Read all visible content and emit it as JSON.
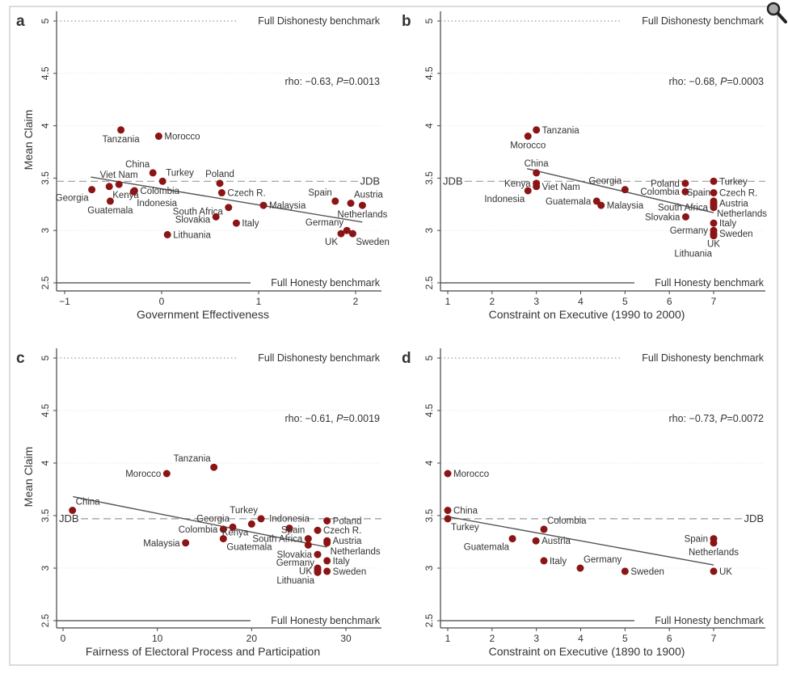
{
  "chart_data": [
    {
      "type": "scatter",
      "panel_letter": "a",
      "xlabel": "Government Effectiveness",
      "ylabel": "Mean Claim",
      "xlim": [
        -1.1,
        2.3
      ],
      "ylim": [
        2.45,
        5.05
      ],
      "xticks": [
        -1,
        0,
        1,
        2
      ],
      "xtick_labels": [
        "−1",
        "0",
        "1",
        "2"
      ],
      "yticks": [
        2.5,
        3,
        3.5,
        4,
        4.5,
        5
      ],
      "ytick_labels": [
        "2.5",
        "3",
        "3.5",
        "4",
        "4.5",
        "5"
      ],
      "annotation": "rho: −0.63, ",
      "p_label": "P",
      "p_value": "=0.0013",
      "jdb_label": "JDB",
      "jdb_side": "right",
      "jdb_value": 3.47,
      "dishonesty_label": "Full Dishonesty benchmark",
      "dishonesty_value": 5,
      "honesty_label": "Full Honesty benchmark",
      "honesty_value": 2.5,
      "trend": [
        [
          -0.73,
          3.51
        ],
        [
          2.07,
          3.08
        ]
      ],
      "points": [
        {
          "label": "Tanzania",
          "x": -0.42,
          "y": 3.96,
          "pos": "b"
        },
        {
          "label": "Morocco",
          "x": -0.03,
          "y": 3.9,
          "pos": "r"
        },
        {
          "label": "China",
          "x": -0.09,
          "y": 3.55,
          "pos": "tl"
        },
        {
          "label": "Turkey",
          "x": 0.01,
          "y": 3.47,
          "pos": "tr"
        },
        {
          "label": "Viet Nam",
          "x": -0.44,
          "y": 3.44,
          "pos": "t"
        },
        {
          "label": "Kenya",
          "x": -0.54,
          "y": 3.42,
          "pos": "br"
        },
        {
          "label": "Georgia",
          "x": -0.72,
          "y": 3.39,
          "pos": "bl"
        },
        {
          "label": "Colombia",
          "x": -0.28,
          "y": 3.38,
          "pos": "r"
        },
        {
          "label": "Indonesia",
          "x": -0.29,
          "y": 3.37,
          "pos": "br"
        },
        {
          "label": "Guatemala",
          "x": -0.53,
          "y": 3.28,
          "pos": "b"
        },
        {
          "label": "Poland",
          "x": 0.6,
          "y": 3.45,
          "pos": "t"
        },
        {
          "label": "Czech R.",
          "x": 0.62,
          "y": 3.36,
          "pos": "r"
        },
        {
          "label": "South Africa",
          "x": 0.69,
          "y": 3.22,
          "pos": "l"
        },
        {
          "label": "Slovakia",
          "x": 0.56,
          "y": 3.13,
          "pos": "l"
        },
        {
          "label": "Italy",
          "x": 0.77,
          "y": 3.07,
          "pos": "r"
        },
        {
          "label": "Lithuania",
          "x": 0.06,
          "y": 2.96,
          "pos": "r"
        },
        {
          "label": "Malaysia",
          "x": 1.05,
          "y": 3.24,
          "pos": "r"
        },
        {
          "label": "Spain",
          "x": 1.79,
          "y": 3.28,
          "pos": "tl"
        },
        {
          "label": "Austria",
          "x": 1.95,
          "y": 3.26,
          "pos": "tr"
        },
        {
          "label": "Netherlands",
          "x": 2.07,
          "y": 3.24,
          "pos": "b"
        },
        {
          "label": "Germany",
          "x": 1.91,
          "y": 3.0,
          "pos": "tl"
        },
        {
          "label": "UK",
          "x": 1.85,
          "y": 2.97,
          "pos": "bl"
        },
        {
          "label": "Sweden",
          "x": 1.97,
          "y": 2.97,
          "pos": "br"
        }
      ]
    },
    {
      "type": "scatter",
      "panel_letter": "b",
      "xlabel": "Constraint on Executive (1990 to 2000)",
      "ylabel": "",
      "xlim": [
        0.8,
        8.1
      ],
      "ylim": [
        2.45,
        5.05
      ],
      "xticks": [
        1,
        2,
        3,
        4,
        5,
        6,
        7
      ],
      "xtick_labels": [
        "1",
        "2",
        "3",
        "4",
        "5",
        "6",
        "7"
      ],
      "yticks": [
        2.5,
        3,
        3.5,
        4,
        4.5,
        5
      ],
      "ytick_labels": [
        "2.5",
        "3",
        "3.5",
        "4",
        "4.5",
        "5"
      ],
      "annotation": "rho: −0.68, ",
      "p_label": "P",
      "p_value": "=0.0003",
      "jdb_label": "JDB",
      "jdb_side": "left",
      "jdb_value": 3.47,
      "dishonesty_label": "Full Dishonesty benchmark",
      "dishonesty_value": 5,
      "honesty_label": "Full Honesty benchmark",
      "honesty_value": 2.5,
      "trend": [
        [
          2.79,
          3.59
        ],
        [
          7,
          3.17
        ]
      ],
      "points": [
        {
          "label": "Tanzania",
          "x": 3.0,
          "y": 3.96,
          "pos": "r"
        },
        {
          "label": "Morocco",
          "x": 2.81,
          "y": 3.9,
          "pos": "b"
        },
        {
          "label": "China",
          "x": 3.0,
          "y": 3.55,
          "pos": "t"
        },
        {
          "label": "Kenya",
          "x": 3.0,
          "y": 3.45,
          "pos": "l"
        },
        {
          "label": "Viet Nam",
          "x": 3.0,
          "y": 3.42,
          "pos": "r"
        },
        {
          "label": "Indonesia",
          "x": 2.81,
          "y": 3.38,
          "pos": "bl"
        },
        {
          "label": "Georgia",
          "x": 5.0,
          "y": 3.39,
          "pos": "tl"
        },
        {
          "label": "Guatemala",
          "x": 4.36,
          "y": 3.28,
          "pos": "l"
        },
        {
          "label": "Malaysia",
          "x": 4.46,
          "y": 3.24,
          "pos": "r"
        },
        {
          "label": "Poland",
          "x": 6.36,
          "y": 3.45,
          "pos": "l"
        },
        {
          "label": "Colombia",
          "x": 6.36,
          "y": 3.37,
          "pos": "l"
        },
        {
          "label": "Slovakia",
          "x": 6.37,
          "y": 3.13,
          "pos": "l"
        },
        {
          "label": "South Africa",
          "x": 7,
          "y": 3.22,
          "pos": "l"
        },
        {
          "label": "Turkey",
          "x": 7,
          "y": 3.47,
          "pos": "r"
        },
        {
          "label": "Czech R.",
          "x": 7,
          "y": 3.36,
          "pos": "r"
        },
        {
          "label": "Spain",
          "x": 7,
          "y": 3.28,
          "pos": "tl"
        },
        {
          "label": "Austria",
          "x": 7,
          "y": 3.26,
          "pos": "r"
        },
        {
          "label": "Netherlands",
          "x": 7,
          "y": 3.24,
          "pos": "br"
        },
        {
          "label": "Italy",
          "x": 7,
          "y": 3.07,
          "pos": "r"
        },
        {
          "label": "Germany",
          "x": 7,
          "y": 3.0,
          "pos": "l"
        },
        {
          "label": "Sweden",
          "x": 7,
          "y": 2.97,
          "pos": "r"
        },
        {
          "label": "UK",
          "x": 7,
          "y": 2.96,
          "pos": "b"
        },
        {
          "label": "Lithuania",
          "x": 7,
          "y": 2.95,
          "pos": "bl2"
        }
      ]
    },
    {
      "type": "scatter",
      "panel_letter": "c",
      "xlabel": "Fairness of Electoral Process and Participation",
      "ylabel": "Mean Claim",
      "xlim": [
        -1,
        34
      ],
      "ylim": [
        2.45,
        5.05
      ],
      "xticks": [
        0,
        10,
        20,
        30
      ],
      "xtick_labels": [
        "0",
        "10",
        "20",
        "30"
      ],
      "yticks": [
        2.5,
        3,
        3.5,
        4,
        4.5,
        5
      ],
      "ytick_labels": [
        "2.5",
        "3",
        "3.5",
        "4",
        "4.5",
        "5"
      ],
      "annotation": "rho: −0.61, ",
      "p_label": "P",
      "p_value": "=0.0019",
      "jdb_label": "JDB",
      "jdb_side": "left",
      "jdb_value": 3.47,
      "dishonesty_label": "Full Dishonesty benchmark",
      "dishonesty_value": 5,
      "honesty_label": "Full Honesty benchmark",
      "honesty_value": 2.5,
      "trend": [
        [
          1.06,
          3.68
        ],
        [
          28,
          3.2
        ]
      ],
      "points": [
        {
          "label": "China",
          "x": 1,
          "y": 3.55,
          "pos": "tr"
        },
        {
          "label": "Morocco",
          "x": 11,
          "y": 3.9,
          "pos": "l"
        },
        {
          "label": "Tanzania",
          "x": 16,
          "y": 3.96,
          "pos": "tl"
        },
        {
          "label": "Malaysia",
          "x": 13,
          "y": 3.24,
          "pos": "l"
        },
        {
          "label": "Colombia",
          "x": 17,
          "y": 3.37,
          "pos": "l"
        },
        {
          "label": "Guatemala",
          "x": 17,
          "y": 3.28,
          "pos": "br"
        },
        {
          "label": "Georgia",
          "x": 18,
          "y": 3.39,
          "pos": "tl"
        },
        {
          "label": "Kenya",
          "x": 20,
          "y": 3.42,
          "pos": "bl"
        },
        {
          "label": "Turkey",
          "x": 21,
          "y": 3.47,
          "pos": "tl"
        },
        {
          "label": "Indonesia",
          "x": 24,
          "y": 3.38,
          "pos": "t"
        },
        {
          "label": "Spain",
          "x": 26,
          "y": 3.28,
          "pos": "tl"
        },
        {
          "label": "South Africa",
          "x": 26,
          "y": 3.22,
          "pos": "l"
        },
        {
          "label": "Czech R.",
          "x": 27,
          "y": 3.36,
          "pos": "r"
        },
        {
          "label": "Slovakia",
          "x": 27,
          "y": 3.13,
          "pos": "l"
        },
        {
          "label": "Germany",
          "x": 27,
          "y": 3.0,
          "pos": "tl"
        },
        {
          "label": "UK",
          "x": 27,
          "y": 2.98,
          "pos": "l"
        },
        {
          "label": "Lithuania",
          "x": 27,
          "y": 2.96,
          "pos": "bl"
        },
        {
          "label": "Poland",
          "x": 28,
          "y": 3.45,
          "pos": "r"
        },
        {
          "label": "Austria",
          "x": 28,
          "y": 3.26,
          "pos": "r"
        },
        {
          "label": "Netherlands",
          "x": 28,
          "y": 3.24,
          "pos": "br"
        },
        {
          "label": "Italy",
          "x": 28,
          "y": 3.07,
          "pos": "r"
        },
        {
          "label": "Sweden",
          "x": 28,
          "y": 2.97,
          "pos": "r"
        }
      ]
    },
    {
      "type": "scatter",
      "panel_letter": "d",
      "xlabel": "Constraint on Executive (1890 to 1900)",
      "ylabel": "",
      "xlim": [
        0.8,
        8.1
      ],
      "ylim": [
        2.45,
        5.05
      ],
      "xticks": [
        1,
        2,
        3,
        4,
        5,
        6,
        7
      ],
      "xtick_labels": [
        "1",
        "2",
        "3",
        "4",
        "5",
        "6",
        "7"
      ],
      "yticks": [
        2.5,
        3,
        3.5,
        4,
        4.5,
        5
      ],
      "ytick_labels": [
        "2.5",
        "3",
        "3.5",
        "4",
        "4.5",
        "5"
      ],
      "annotation": "rho: −0.73, ",
      "p_label": "P",
      "p_value": "=0.0072",
      "jdb_label": "JDB",
      "jdb_side": "right",
      "jdb_value": 3.47,
      "dishonesty_label": "Full Dishonesty benchmark",
      "dishonesty_value": 5,
      "honesty_label": "Full Honesty benchmark",
      "honesty_value": 2.5,
      "trend": [
        [
          1,
          3.49
        ],
        [
          7,
          3.03
        ]
      ],
      "points": [
        {
          "label": "Morocco",
          "x": 1,
          "y": 3.9,
          "pos": "r"
        },
        {
          "label": "China",
          "x": 1,
          "y": 3.55,
          "pos": "r"
        },
        {
          "label": "Turkey",
          "x": 1,
          "y": 3.47,
          "pos": "br"
        },
        {
          "label": "Guatemala",
          "x": 2.46,
          "y": 3.28,
          "pos": "bl"
        },
        {
          "label": "Colombia",
          "x": 3.17,
          "y": 3.37,
          "pos": "tr"
        },
        {
          "label": "Austria",
          "x": 2.99,
          "y": 3.26,
          "pos": "r"
        },
        {
          "label": "Italy",
          "x": 3.17,
          "y": 3.07,
          "pos": "r"
        },
        {
          "label": "Germany",
          "x": 3.99,
          "y": 3.0,
          "pos": "tr"
        },
        {
          "label": "Sweden",
          "x": 5.0,
          "y": 2.97,
          "pos": "r"
        },
        {
          "label": "Spain",
          "x": 7,
          "y": 3.28,
          "pos": "l"
        },
        {
          "label": "Netherlands",
          "x": 7,
          "y": 3.24,
          "pos": "b"
        },
        {
          "label": "UK",
          "x": 7,
          "y": 2.97,
          "pos": "r"
        }
      ]
    }
  ],
  "colors": {
    "point": "#8b1515",
    "trend": "#555555",
    "axis": "#444444",
    "grid": "#e6e6e6",
    "text": "#333333"
  },
  "icons": {
    "zoom": "magnifier-icon"
  }
}
